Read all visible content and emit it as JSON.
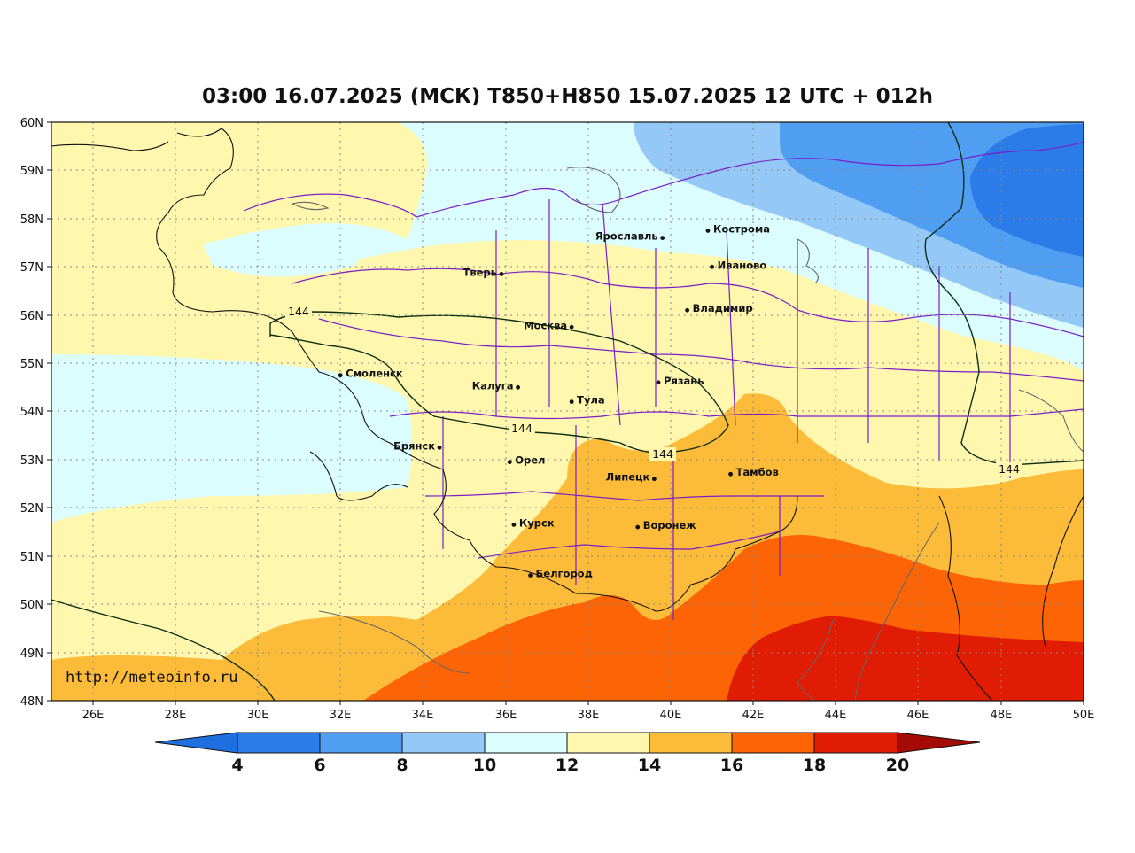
{
  "title": "03:00 16.07.2025 (МСК) T850+H850 15.07.2025 12 UTC + 012h",
  "watermark": "http://meteoinfo.ru",
  "axes": {
    "lon_ticks": [
      "26E",
      "28E",
      "30E",
      "32E",
      "34E",
      "36E",
      "38E",
      "40E",
      "42E",
      "44E",
      "46E",
      "48E",
      "50E"
    ],
    "lat_ticks": [
      "60N",
      "59N",
      "58N",
      "57N",
      "56N",
      "55N",
      "54N",
      "53N",
      "52N",
      "51N",
      "50N",
      "49N",
      "48N"
    ],
    "lon_range": [
      25,
      50
    ],
    "lat_range": [
      48,
      60
    ]
  },
  "cities": [
    {
      "name": "Ярославль",
      "lon": 39.8,
      "lat": 57.6,
      "label_side": "left"
    },
    {
      "name": "Кострома",
      "lon": 40.9,
      "lat": 57.75,
      "label_side": "right"
    },
    {
      "name": "Иваново",
      "lon": 41.0,
      "lat": 57.0,
      "label_side": "right"
    },
    {
      "name": "Тверь",
      "lon": 35.9,
      "lat": 56.85,
      "label_side": "left"
    },
    {
      "name": "Владимир",
      "lon": 40.4,
      "lat": 56.1,
      "label_side": "right"
    },
    {
      "name": "Москва",
      "lon": 37.6,
      "lat": 55.75,
      "label_side": "left"
    },
    {
      "name": "Смоленск",
      "lon": 32.0,
      "lat": 54.75,
      "label_side": "right"
    },
    {
      "name": "Калуга",
      "lon": 36.3,
      "lat": 54.5,
      "label_side": "left"
    },
    {
      "name": "Рязань",
      "lon": 39.7,
      "lat": 54.6,
      "label_side": "right"
    },
    {
      "name": "Тула",
      "lon": 37.6,
      "lat": 54.2,
      "label_side": "right"
    },
    {
      "name": "Брянск",
      "lon": 34.4,
      "lat": 53.25,
      "label_side": "left"
    },
    {
      "name": "Орел",
      "lon": 36.1,
      "lat": 52.95,
      "label_side": "right"
    },
    {
      "name": "Липецк",
      "lon": 39.6,
      "lat": 52.6,
      "label_side": "left"
    },
    {
      "name": "Тамбов",
      "lon": 41.45,
      "lat": 52.7,
      "label_side": "right"
    },
    {
      "name": "Курск",
      "lon": 36.2,
      "lat": 51.65,
      "label_side": "right"
    },
    {
      "name": "Воронеж",
      "lon": 39.2,
      "lat": 51.6,
      "label_side": "right"
    },
    {
      "name": "Белгород",
      "lon": 36.6,
      "lat": 50.6,
      "label_side": "right"
    }
  ],
  "contour_labels": [
    "144",
    "144",
    "144",
    "144"
  ],
  "colorbar": {
    "labels": [
      "4",
      "6",
      "8",
      "10",
      "12",
      "14",
      "16",
      "18",
      "20"
    ],
    "colors": [
      "#1f6fe0",
      "#2b7be8",
      "#4f9ef2",
      "#94c9f7",
      "#dcfdfd",
      "#fff7ae",
      "#fdbb3a",
      "#fd6405",
      "#e01d04",
      "#a50b05"
    ]
  },
  "fill_colors": {
    "c6": "#2b7be8",
    "c8": "#4f9ef2",
    "c10": "#94c9f7",
    "c12": "#dcfdfd",
    "c14": "#fff7ae",
    "c16": "#fdbb3a",
    "c18": "#fd6405",
    "c20": "#e01d04"
  }
}
